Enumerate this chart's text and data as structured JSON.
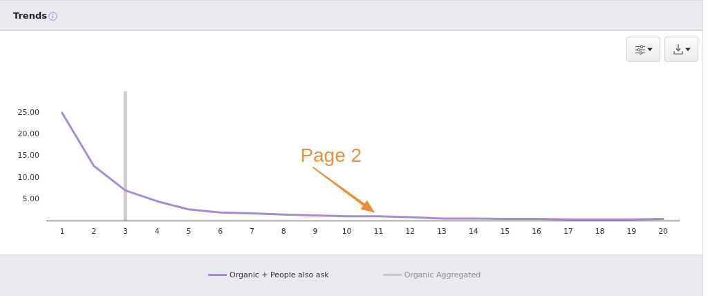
{
  "chart_data": {
    "type": "line",
    "title": "Trends",
    "x": [
      1,
      2,
      3,
      4,
      5,
      6,
      7,
      8,
      9,
      10,
      11,
      12,
      13,
      14,
      15,
      16,
      17,
      18,
      19,
      20
    ],
    "xlim": [
      0.5,
      20.5
    ],
    "xticks": [
      1,
      2,
      3,
      4,
      5,
      6,
      7,
      8,
      9,
      10,
      11,
      12,
      13,
      14,
      15,
      16,
      17,
      18,
      19,
      20
    ],
    "ylim": [
      0,
      30
    ],
    "yticks": [
      {
        "value": 5,
        "label": "5.00"
      },
      {
        "value": 10,
        "label": "10.00"
      },
      {
        "value": 15,
        "label": "15.00"
      },
      {
        "value": 20,
        "label": "20.00"
      },
      {
        "value": 25,
        "label": "25.00"
      }
    ],
    "series": [
      {
        "name": "Organic + People also ask",
        "color": "#a78bdb",
        "values": [
          25.0,
          12.7,
          7.0,
          4.5,
          2.6,
          1.9,
          1.7,
          1.4,
          1.2,
          1.0,
          1.0,
          0.8,
          0.5,
          0.5,
          0.4,
          0.4,
          0.3,
          0.3,
          0.3,
          0.4
        ]
      },
      {
        "name": "Organic Aggregated",
        "color": "#c8c8c8",
        "values": [
          null,
          null,
          null,
          null,
          null,
          null,
          null,
          null,
          null,
          null,
          null,
          null,
          null,
          null,
          null,
          null,
          null,
          null,
          null,
          null
        ]
      }
    ],
    "ref_lines": [
      {
        "axis": "x",
        "value": 3,
        "color": "#cccccc"
      }
    ],
    "annotations": [
      {
        "text": "Page 2",
        "x": 11,
        "y": 1.0
      }
    ],
    "legend": "bottom",
    "grid": false,
    "marker": "none",
    "line_style": "solid"
  }
}
